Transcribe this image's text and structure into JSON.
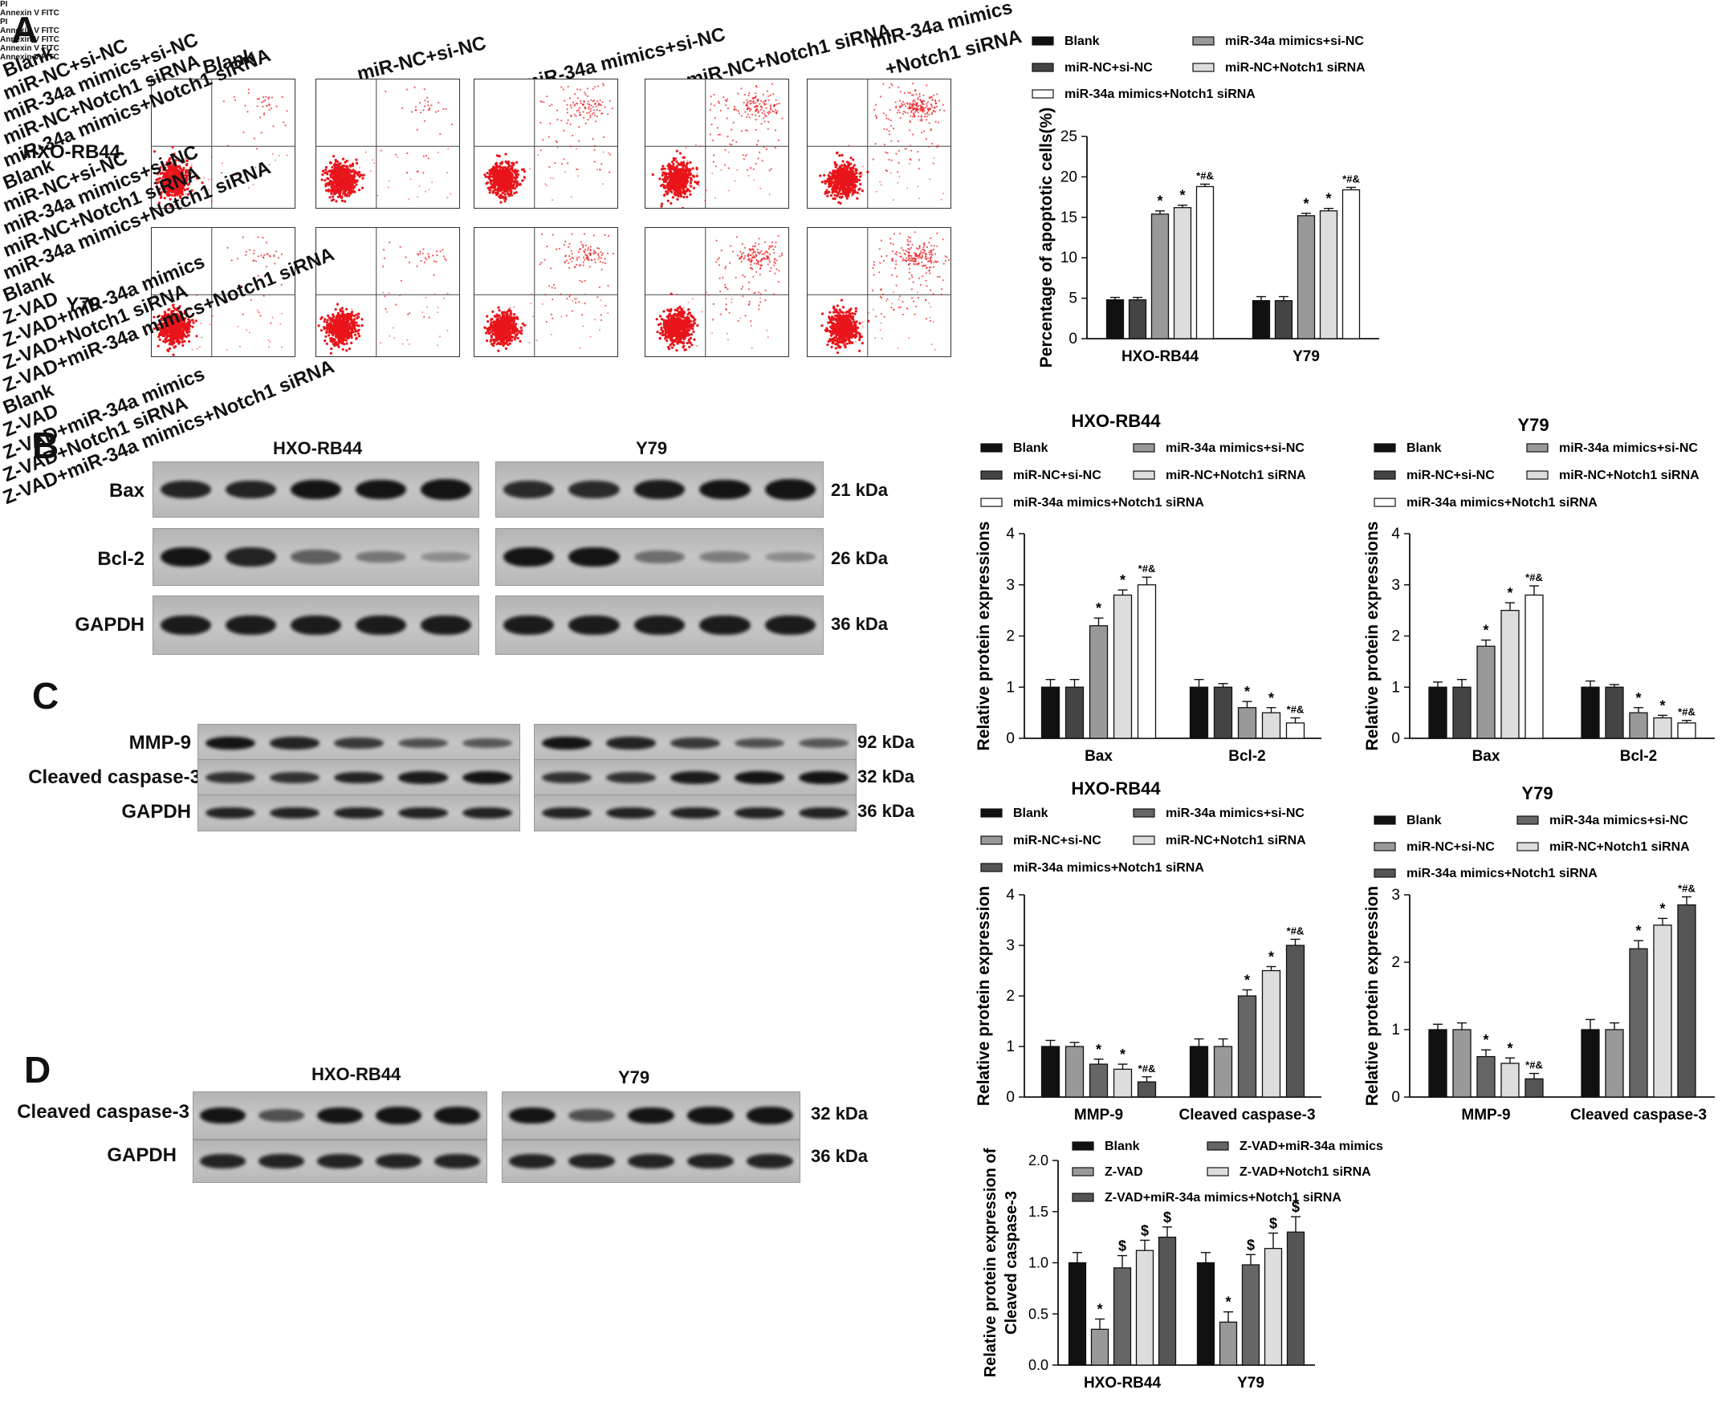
{
  "panels": {
    "A": {
      "letter": "A",
      "flow_headers": [
        "Blank",
        "miR-NC+si-NC",
        "miR-34a mimics+si-NC",
        "miR-NC+Notch1 siRNA",
        "miR-34a mimics",
        "+Notch1 siRNA"
      ],
      "row_labels": [
        "HXO-RB44",
        "Y79"
      ],
      "axis_x_label": "Annexin V FITC",
      "axis_y_label": "PI"
    },
    "B": {
      "letter": "B",
      "cell_lines": [
        "HXO-RB44",
        "Y79"
      ],
      "rows": [
        {
          "label": "Bax",
          "kda": "21  kDa"
        },
        {
          "label": "Bcl-2",
          "kda": "26  kDa"
        },
        {
          "label": "GAPDH",
          "kda": "36  kDa"
        }
      ]
    },
    "C": {
      "letter": "C",
      "rows": [
        {
          "label": "MMP-9",
          "kda": "92  kDa"
        },
        {
          "label": "Cleaved caspase-3",
          "kda": "32  kDa"
        },
        {
          "label": "GAPDH",
          "kda": "36  kDa"
        }
      ],
      "lane_labels": [
        "Blank",
        "miR-NC+si-NC",
        "miR-34a mimics+si-NC",
        "miR-NC+Notch1 siRNA",
        "miR-34a mimics+Notch1 siRNA"
      ]
    },
    "D": {
      "letter": "D",
      "cell_lines": [
        "HXO-RB44",
        "Y79"
      ],
      "rows": [
        {
          "label": "Cleaved caspase-3",
          "kda": "32  kDa"
        },
        {
          "label": "GAPDH",
          "kda": "36  kDa"
        }
      ],
      "lane_labels": [
        "Blank",
        "Z-VAD",
        "Z-VAD+miR-34a mimics",
        "Z-VAD+Notch1 siRNA",
        "Z-VAD+miR-34a mimics+Notch1 siRNA"
      ]
    }
  },
  "chart_data": [
    {
      "id": "A",
      "type": "bar",
      "title": "",
      "categories": [
        "HXO-RB44",
        "Y79"
      ],
      "ylabel": "Percentage of apoptotic cells(%)",
      "ylim": [
        0,
        25
      ],
      "yticks": [
        0,
        5,
        10,
        15,
        20,
        25
      ],
      "legend": [
        "Blank",
        "miR-34a mimics+si-NC",
        "miR-NC+si-NC",
        "miR-NC+Notch1 siRNA",
        "miR-34a mimics+Notch1 siRNA"
      ],
      "series": [
        {
          "name": "Blank",
          "values": [
            4.8,
            4.7
          ],
          "errors": [
            0.3,
            0.5
          ],
          "color": "#111111"
        },
        {
          "name": "miR-NC+si-NC",
          "values": [
            4.8,
            4.7
          ],
          "errors": [
            0.3,
            0.5
          ],
          "color": "#444444"
        },
        {
          "name": "miR-34a mimics+si-NC",
          "values": [
            15.4,
            15.2
          ],
          "errors": [
            0.4,
            0.3
          ],
          "color": "#999999"
        },
        {
          "name": "miR-NC+Notch1 siRNA",
          "values": [
            16.2,
            15.8
          ],
          "errors": [
            0.3,
            0.3
          ],
          "color": "#dddddd"
        },
        {
          "name": "miR-34a mimics+Notch1 siRNA",
          "values": [
            18.8,
            18.4
          ],
          "errors": [
            0.3,
            0.3
          ],
          "color": "#ffffff"
        }
      ],
      "annotations": [
        [
          "",
          "",
          "*",
          "*",
          "*#&"
        ],
        [
          "",
          "",
          "*",
          "*",
          "*#&"
        ]
      ]
    },
    {
      "id": "B1",
      "type": "bar",
      "title": "HXO-RB44",
      "categories": [
        "Bax",
        "Bcl-2"
      ],
      "ylabel": "Relative protein expressions",
      "ylim": [
        0,
        4
      ],
      "yticks": [
        0,
        1,
        2,
        3,
        4
      ],
      "legend": [
        "Blank",
        "miR-34a mimics+si-NC",
        "miR-NC+si-NC",
        "miR-NC+Notch1 siRNA",
        "miR-34a mimics+Notch1 siRNA"
      ],
      "series": [
        {
          "name": "Blank",
          "values": [
            1.0,
            1.0
          ],
          "errors": [
            0.15,
            0.15
          ],
          "color": "#111111"
        },
        {
          "name": "miR-NC+si-NC",
          "values": [
            1.0,
            1.0
          ],
          "errors": [
            0.15,
            0.07
          ],
          "color": "#444444"
        },
        {
          "name": "miR-34a mimics+si-NC",
          "values": [
            2.2,
            0.6
          ],
          "errors": [
            0.15,
            0.12
          ],
          "color": "#999999"
        },
        {
          "name": "miR-NC+Notch1 siRNA",
          "values": [
            2.8,
            0.5
          ],
          "errors": [
            0.1,
            0.1
          ],
          "color": "#dddddd"
        },
        {
          "name": "miR-34a mimics+Notch1 siRNA",
          "values": [
            3.0,
            0.3
          ],
          "errors": [
            0.15,
            0.1
          ],
          "color": "#ffffff"
        }
      ],
      "annotations": [
        [
          "",
          "",
          "*",
          "*",
          "*#&"
        ],
        [
          "",
          "",
          "*",
          "*",
          "*#&"
        ]
      ]
    },
    {
      "id": "B2",
      "type": "bar",
      "title": "Y79",
      "categories": [
        "Bax",
        "Bcl-2"
      ],
      "ylabel": "Relative protein expressions",
      "ylim": [
        0,
        4
      ],
      "yticks": [
        0,
        1,
        2,
        3,
        4
      ],
      "legend": [
        "Blank",
        "miR-34a mimics+si-NC",
        "miR-NC+si-NC",
        "miR-NC+Notch1 siRNA",
        "miR-34a mimics+Notch1 siRNA"
      ],
      "series": [
        {
          "name": "Blank",
          "values": [
            1.0,
            1.0
          ],
          "errors": [
            0.1,
            0.12
          ],
          "color": "#111111"
        },
        {
          "name": "miR-NC+si-NC",
          "values": [
            1.0,
            1.0
          ],
          "errors": [
            0.15,
            0.05
          ],
          "color": "#444444"
        },
        {
          "name": "miR-34a mimics+si-NC",
          "values": [
            1.8,
            0.5
          ],
          "errors": [
            0.12,
            0.1
          ],
          "color": "#999999"
        },
        {
          "name": "miR-NC+Notch1 siRNA",
          "values": [
            2.5,
            0.4
          ],
          "errors": [
            0.15,
            0.05
          ],
          "color": "#dddddd"
        },
        {
          "name": "miR-34a mimics+Notch1 siRNA",
          "values": [
            2.8,
            0.3
          ],
          "errors": [
            0.18,
            0.05
          ],
          "color": "#ffffff"
        }
      ],
      "annotations": [
        [
          "",
          "",
          "*",
          "*",
          "*#&"
        ],
        [
          "",
          "",
          "*",
          "*",
          "*#&"
        ]
      ]
    },
    {
      "id": "C1",
      "type": "bar",
      "title": "HXO-RB44",
      "categories": [
        "MMP-9",
        "Cleaved caspase-3"
      ],
      "ylabel": "Relative protein expression",
      "ylim": [
        0,
        4
      ],
      "yticks": [
        0,
        1,
        2,
        3,
        4
      ],
      "legend": [
        "Blank",
        "miR-34a mimics+si-NC",
        "miR-NC+si-NC",
        "miR-NC+Notch1 siRNA",
        "miR-34a mimics+Notch1 siRNA"
      ],
      "series": [
        {
          "name": "Blank",
          "values": [
            1.0,
            1.0
          ],
          "errors": [
            0.12,
            0.15
          ],
          "color": "#111111"
        },
        {
          "name": "miR-NC+si-NC",
          "values": [
            1.0,
            1.0
          ],
          "errors": [
            0.08,
            0.15
          ],
          "color": "#999999"
        },
        {
          "name": "miR-34a mimics+si-NC",
          "values": [
            0.65,
            2.0
          ],
          "errors": [
            0.1,
            0.12
          ],
          "color": "#666666"
        },
        {
          "name": "miR-NC+Notch1 siRNA",
          "values": [
            0.55,
            2.5
          ],
          "errors": [
            0.1,
            0.08
          ],
          "color": "#dddddd"
        },
        {
          "name": "miR-34a mimics+Notch1 siRNA",
          "values": [
            0.3,
            3.0
          ],
          "errors": [
            0.1,
            0.12
          ],
          "color": "#555555"
        }
      ],
      "annotations": [
        [
          "",
          "",
          "*",
          "*",
          "*#&"
        ],
        [
          "",
          "",
          "*",
          "*",
          "*#&"
        ]
      ]
    },
    {
      "id": "C2",
      "type": "bar",
      "title": "Y79",
      "categories": [
        "MMP-9",
        "Cleaved caspase-3"
      ],
      "ylabel": "Relative protein expression",
      "ylim": [
        0,
        3
      ],
      "yticks": [
        0,
        1,
        2,
        3
      ],
      "legend": [
        "Blank",
        "miR-34a mimics+si-NC",
        "miR-NC+si-NC",
        "miR-NC+Notch1 siRNA",
        "miR-34a mimics+Notch1 siRNA"
      ],
      "series": [
        {
          "name": "Blank",
          "values": [
            1.0,
            1.0
          ],
          "errors": [
            0.08,
            0.15
          ],
          "color": "#111111"
        },
        {
          "name": "miR-NC+si-NC",
          "values": [
            1.0,
            1.0
          ],
          "errors": [
            0.1,
            0.1
          ],
          "color": "#999999"
        },
        {
          "name": "miR-34a mimics+si-NC",
          "values": [
            0.6,
            2.2
          ],
          "errors": [
            0.1,
            0.12
          ],
          "color": "#666666"
        },
        {
          "name": "miR-NC+Notch1 siRNA",
          "values": [
            0.5,
            2.55
          ],
          "errors": [
            0.08,
            0.1
          ],
          "color": "#dddddd"
        },
        {
          "name": "miR-34a mimics+Notch1 siRNA",
          "values": [
            0.27,
            2.85
          ],
          "errors": [
            0.08,
            0.12
          ],
          "color": "#555555"
        }
      ],
      "annotations": [
        [
          "",
          "",
          "*",
          "*",
          "*#&"
        ],
        [
          "",
          "",
          "*",
          "*",
          "*#&"
        ]
      ]
    },
    {
      "id": "D",
      "type": "bar",
      "title": "",
      "categories": [
        "HXO-RB44",
        "Y79"
      ],
      "ylabel": [
        "Relative protein expression of",
        "Cleaved caspase-3"
      ],
      "ylim": [
        0,
        2.0
      ],
      "yticks": [
        0.0,
        0.5,
        1.0,
        1.5,
        2.0
      ],
      "legend": [
        "Blank",
        "Z-VAD+miR-34a mimics",
        "Z-VAD",
        "Z-VAD+Notch1 siRNA",
        "Z-VAD+miR-34a mimics+Notch1 siRNA"
      ],
      "series": [
        {
          "name": "Blank",
          "values": [
            1.0,
            1.0
          ],
          "errors": [
            0.1,
            0.1
          ],
          "color": "#111111"
        },
        {
          "name": "Z-VAD",
          "values": [
            0.35,
            0.42
          ],
          "errors": [
            0.1,
            0.1
          ],
          "color": "#999999"
        },
        {
          "name": "Z-VAD+miR-34a mimics",
          "values": [
            0.95,
            0.98
          ],
          "errors": [
            0.12,
            0.1
          ],
          "color": "#666666"
        },
        {
          "name": "Z-VAD+Notch1 siRNA",
          "values": [
            1.12,
            1.14
          ],
          "errors": [
            0.1,
            0.15
          ],
          "color": "#dddddd"
        },
        {
          "name": "Z-VAD+miR-34a mimics+Notch1 siRNA",
          "values": [
            1.25,
            1.3
          ],
          "errors": [
            0.1,
            0.15
          ],
          "color": "#555555"
        }
      ],
      "annotations": [
        [
          "",
          "*",
          "$",
          "$",
          "$"
        ],
        [
          "",
          "*",
          "$",
          "$",
          "$"
        ]
      ]
    }
  ]
}
